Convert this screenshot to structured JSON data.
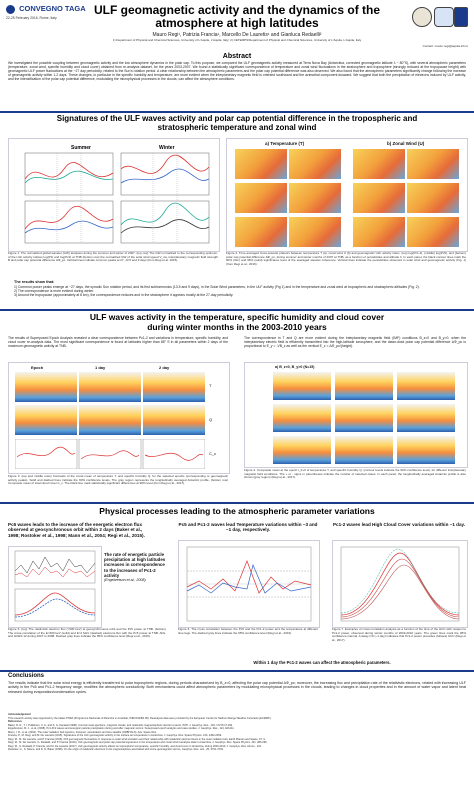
{
  "header": {
    "logo_text": "CONVEGNO TAGA",
    "conference": "22-25 February 2016, Rome, Italy",
    "title_line1": "ULF geomagnetic activity and the dynamics of the",
    "title_line2": "atmosphere at high latitudes",
    "authors": "Mauro Regi¹, Patrizia Francia¹, Marcello De Lauretis¹ and Gianluca Redaelli²",
    "affiliation": "1) Department of Physical and Chemical Sciences, University of L'Aquila, L'Aquila, Italy; 2) CETEMPS/Department of Physical and Chemical Sciences, University of L'Aquila, L'Aquila, Italy",
    "contact": "Contact: mauro.regi@aquila.infn.it"
  },
  "abstract": {
    "heading": "Abstract",
    "text": "We investigated the possible coupling between geomagnetic activity and the low atmosphere dynamics in the polar cap. To this purpose, we compared the ULF geomagnetic activity measured at Terra Nova Bay (Antarctica, corrected geomagnetic latitude λ ~ 80°S), with several atmospheric parameters (temperature, zonal wind, specific humidity and cloud cover) obtained from re-analysis dataset, for the years 2003-2007. We found a statistically significant correspondence of temperature and zonal wind fluctuations in the stratosphere and troposphere (strongly reduced at the tropopause height) with geomagnetic ULF power fluctuations at the ~27 day periodicity, related to the Sun's rotation period. A clear relationship between the atmospheric parameters and the polar cap potential difference was also observed. We also found that the atmospheric parameters significantly change following the increase of geomagnetic activity within 1-2 days. These changes, in particular in the specific humidity and temperature, are more evident when the interplanetary magnetic field is oriented southward and the azimuthal component dusward. We suggest that both the precipitation of electrons induced by ULF activity, and the intensification of the polar cap potential difference, modulating the microphysical processes in the clouds, can affect the atmosphere conditions."
  },
  "section1": {
    "title_line1": "Signatures of the ULF waves activity and polar cap potential difference in the tropospheric and",
    "title_line2": "stratospheric temperature and zonal wind",
    "fig1_labels": {
      "summer": "Summer",
      "winter": "Winter"
    },
    "fig2_labels": {
      "a": "a) Temperature (T)",
      "b": "b) Zonal Wind (U)"
    },
    "fig1_caption": "Figure 1. The normalized global wavelet (GW) analyses during the summer and winter of 2007. (top row) The GW normalized to the corresponding optimum, of the ULF activity indices log(P1) and log(Pc2) at TNB (bottom row) the normalized GW of the solar wind speed V_sw, interplanetary magnetic field strength B and polar cap potential difference ΔΦ_pc. Vertical lines indicate common peaks at 27, 13.5 and 9 days (from Regi et al. 2015).",
    "fig2_caption": "Figure 2. Time averaged cross-wavelet phasors between temperature T (a), zonal wind U (b) and geomagnetic ULF activity index. (top) log(Pc1-2), (middle) log(Pc5), and (bottom) polar cap potential difference ΔΦ_pc, during summer and winter months of 2007 at TNB, as a function of periodicities and altitude h. In each panel, the black contour lines mark the 90% (thin) and 95% (solid) significance level of the averaged wavelet coherence. Vertical lines indicate the periodicities observed in solar wind and geomagnetic activity (Fig. 1) (from Regi et al., 2016).",
    "results_heading": "The results show that:",
    "results": [
      "1) Common power peaks emerge at ~27 days, the synodic Sun rotation period, and its first subharmonics (13.5 and 9 days), in the Solar Wind parameters, in the ULF activity (Fig 1) and in the temperature and zonal wind at tropospheric and stratospheric altitudes (Fig. 2).",
      "2) The correspondence is more evident during winter.",
      "3) Around the tropopause (approximately at 8 km), the correspondence reduces and in the stratosphere it appears mostly at the 27-day periodicity."
    ]
  },
  "section2": {
    "title_line1": "ULF waves activity in the temperature, specific humidity and cloud cover",
    "title_line2": "during winter months in the 2003-2010 years",
    "left_text": "The results of Superposed Epoch Analysis revealed a clear correspondence between Pc1-2 and variations in temperature, specific humidity, and cloud cover re-analysis data. The most significant correspondence is found at latitudes higher than 85° S in all parameters within 2 days of the maximum geomagnetic activity at TNB.",
    "right_text": "The correspondence in T and Q are more evident during the interplanetary magnetic field (IMF) conditions B_z<0 and B_y>0, when the interplanetary electric field is efficiently transmitted into the high-latitude ionosphere, and the dawn-dusk polar cap potential difference ΔΦ_pc is proportional to E_y = -VB_z as well as the vertical E_z = ΔΦ_pc/(height).",
    "fig3_cols": [
      "Epoch",
      "1 day",
      "2 day"
    ],
    "fig3_rows": [
      "T",
      "Q",
      "C_c"
    ],
    "fig3_caption": "Figure 3. (top and middle rows) Contrasts of the zonal mean of temperature T, and specific humidity Q, for the selected epochs (corresponding to geomagnetic activity peaks). Solid and dashed lines indicate the 90% confidence levels. The gray region represents the longitudinally averaged Antarctic profile. (bottom row) Composite mean of total cloud cover C_c. The black line mark statistically significant differences at 90% level (from Regi et al., 2017).",
    "fig4_header": "a) B_z<0, B_y>0 (N=15)",
    "fig4_caption": "Figure 4. Composite mean at the epoch t_0+0 of temperature T, and specific humidity Q, (contour levels indicate the 90% confidence level), for different interplanetary magnetic field conditions. The + or - signs in parentheses indicate the number of selected cases. In each panel, the longitudinally averaged Antarctic profile is also shown (gray region) (Regi et al., 2017)."
  },
  "section3": {
    "title": "Physical processes leading to the atmospheric parameter variations",
    "pc5_heading": "Pc5 waves leads to the increase of the energetic electron flux observed at geosynchronous orbit within 2 days (Baker et al., 1998; Rostoker et al., 1998; Mann et al., 2004; Regi et al., 2015).",
    "pc5_rate": "The rate of energetic particle precipitation at high latitudes increases in correspondence to the increases of Pc1-2 activity",
    "pc5_rate_ref": "(Engebretson et al., 2008).",
    "fig5_caption": "Figure 5. (top) The relativistic electron flux (>600 keV) at geosynchronous orbit and the Pc5 power at TNB. (bottom) The cross-correlation of the E>600 keV (solid) and E>2 MeV (dashed) electrons flux with the Pc5 power at TNB. ADs, and GOES 12 during 2007 to 2008. Dashed gray lines indicate the 95% confidence level (Regi et al., 2015).",
    "fig6_heading": "Pc5 and Pc1-2 waves lead Temperature variations within ~3 and ~1 day, respectively.",
    "fig6_caption": "Figure 6. The cross correlation between the Pc5 and the Pc1-2 power and the temperature at different time lags. The dashed gray lines indicate the 95% confidence level (Regi et al., 2016).",
    "fig7_heading": "Pc1-2 waves lead High Cloud Cover variations within ~1 day.",
    "fig7_caption": "Figure 7. Examples of cross-correlation analysis as a function of the time of the HCC with respect to Pc1-2 power, observed during winter months of 2003-2010 years. The green lines mark the 95% confidence interval. A delay t=0 (~1 day) indicates that Pc1-2 power precedes (follows) HCC (Regi et al., 2017).",
    "bottom_note": "Within 1 day the Pc1-2 waves can affect the atmospheric parameters."
  },
  "conclusions": {
    "heading": "Conclusions",
    "text": "The results indicate that the solar wind energy is efficiently transferred to polar tropospheric regions, during periods characterized by B_z<0, affecting the polar cap potential ΔΦ_pc; moreover, the increasing flux and precipitation rate of the relativistic electrons, related with increasing ULF activity in the Pc5 and Pc1-2 frequency range, modifies the atmospheric conductivity. Both mechanisms could affect atmospheric parameters by modulating microphysical processes in the clouds, leading to changes in cloud properties and in the amount of water vapor and latent heat released during evaporation/condensation cycles."
  },
  "references": {
    "heading": "Acknowledgement",
    "lines": [
      "This research activity was supported by the Italian PNRA (Programma Nazionale di Ricerche in Antartide, PdR2013/B2.08). Reanalysis data were provided by the European Centre for Medium-Range Weather Forecasts (ECMWF).",
      "References",
      "Baker, D. N., T. I. Pulkkinen, X. Li, and S. G. Kanekal (1998), Coronal mass ejections, magnetic clouds, and relativistic magnetospheric electron events: ISTP. J. Geophys. Res., 103, 17279-17,292.",
      "Engebretson, M. J., et al. (2008), Pc1-Pc2 waves and energetic particle precipitation during and after magnetic storms: Superposed epoch analysis and case studies, J. Geophys. Res., 113, A01211.",
      "Mann, I. R., et al. (2004), The outer radiation belt injection, transport, acceleration and loss satellite (ORBITALS), Adv. Space Res.",
      "Francia, P., M. Regi, and M. De Lauretis (2015), Signatures of the ULF geomagnetic activity in the surface air temperature in Antarctica, J. Geophys. Res. Space Physics, 120, 2452-2459.",
      "Regi, M., M. De Lauretis, and P. Francia (2015), Pc5 geomagnetic fluctuations in response to solar wind excitation and their relationship with relativistic electron fluxes in the outer radiation belt, Earth Planets and Space, 67, 9.",
      "Regi, M., M. De Lauretis, G. Redaelli, and P. Francia (2016), ULF geomagnetic and polar cap potential signatures in the temperature and zonal wind reanalysis data in Antarctica, J. Geophys. Res. Space Physics, 121, 286-295.",
      "Regi, M., G. Redaelli, P. Francia, and M. De Lauretis (2017), ULF geomagnetic activity effects on tropospheric temperature, specific humidity, and cloud cover in Antarctica, during 2003-2010, J. Geophys. Res. Atmos., 122.",
      "Rostoker, G., S. Skone, and D. N. Baker (1998), On the origin of relativistic electrons in the magnetosphere associated with some geomagnetic storms, Geophys. Res. Lett., 25, 3701-3704."
    ]
  }
}
